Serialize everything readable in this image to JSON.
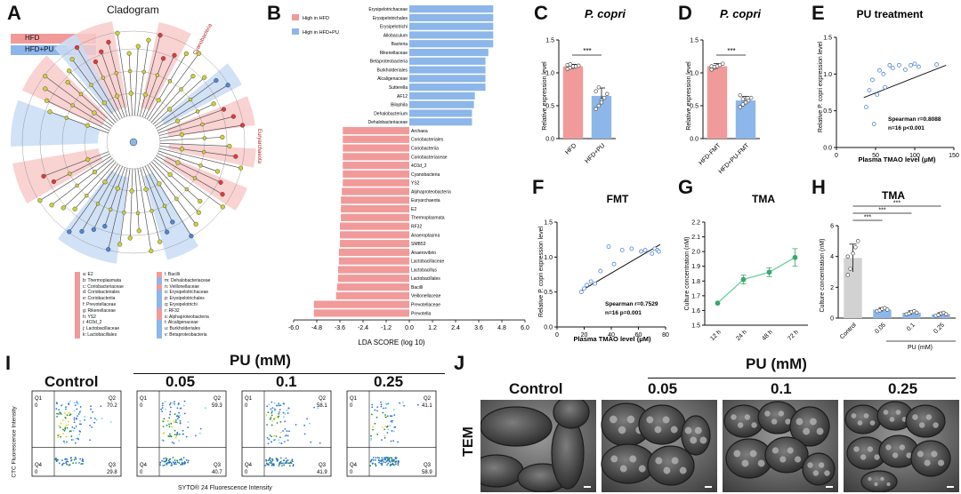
{
  "panel_letters": {
    "A": "A",
    "B": "B",
    "C": "C",
    "D": "D",
    "E": "E",
    "F": "F",
    "G": "G",
    "H": "H",
    "I": "I",
    "J": "J"
  },
  "colors": {
    "hfd": "#f19a9a",
    "hfd_pu": "#8db6ea",
    "green": "#3aa86a",
    "gray_bar": "#d2d2d2",
    "tree": "#555555",
    "node": "#cfcf3a"
  },
  "cladogram": {
    "title": "Cladogram",
    "legend": [
      "HFD",
      "HFD+PU"
    ],
    "clade_labels": {
      "cyanobacteria": "Cyanobacteria",
      "euryarchaeota": "Euryarchaeota"
    },
    "key_left": [
      "a: E2",
      "b: Thermoplasmata",
      "c: Coriobacteriaceae",
      "d: Coriobacteriales",
      "e: Coriobacteriia",
      "f: Prevotellaceae",
      "g: Rikenellaceae",
      "h: YS2",
      "i: 4C0d_2",
      "j: Lactobacillaceae",
      "k: Lactobacillales"
    ],
    "key_right": [
      "l: Bacilli",
      "m: Dehalobacteriaceae",
      "n: Veillonellaceae",
      "o: Erysipelotrichaceae",
      "p: Erysipelotrichales",
      "q: Erysipelotrichi",
      "r: RF32",
      "s: Alphaproteobacteria",
      "t: Alcaligenaceae",
      "u: Burkholderiales",
      "v: Betaproteobacteria"
    ]
  },
  "chart_data": [
    {
      "panel": "B",
      "type": "bar",
      "orientation": "horizontal",
      "xlabel": "LDA SCORE (log 10)",
      "xlim": [
        -6.0,
        6.0
      ],
      "xticks": [
        "-6.0",
        "-4.8",
        "-3.6",
        "-2.4",
        "-1.2",
        "0.0",
        "1.2",
        "2.4",
        "3.6",
        "4.8",
        "6.0"
      ],
      "legend": [
        "High in HFD",
        "High in HFD+PU"
      ],
      "series": [
        {
          "name": "High in HFD+PU",
          "categories": [
            "Erysipelotrichaceae",
            "Erysipelotrichales",
            "Erysipelotrichi",
            "Allobaculum",
            "Bacteria",
            "Rikenellaceae",
            "Betaproteobacteria",
            "Burkholderiales",
            "Alcaligenaceae",
            "Sutterella",
            "AF12",
            "Bilophila",
            "Dehalobacterium",
            "Dehalobacteriaceae"
          ],
          "values": [
            4.35,
            4.35,
            4.35,
            4.35,
            4.35,
            4.1,
            3.95,
            3.95,
            3.95,
            3.95,
            3.4,
            3.35,
            3.25,
            3.25
          ]
        },
        {
          "name": "High in HFD",
          "categories": [
            "Archaea",
            "Coriobacteriales",
            "Coriobacteriia",
            "Coriobacteriaceae",
            "4C0d_2",
            "Cyanobacteria",
            "YS2",
            "Alphaproteobacteria",
            "Euryarchaeota",
            "E2",
            "Thermoplasmata",
            "RF32",
            "Anaeroplasma",
            "SMB53",
            "Anaerovibrio",
            "Lactobacillaceae",
            "Lactobacillus",
            "Lactobacillales",
            "Bacilli",
            "Veillonellaceae",
            "Prevotellaceae",
            "Prevotella"
          ],
          "values": [
            -3.45,
            -3.45,
            -3.45,
            -3.45,
            -3.45,
            -3.45,
            -3.45,
            -3.5,
            -3.55,
            -3.55,
            -3.55,
            -3.6,
            -3.6,
            -3.6,
            -3.65,
            -3.65,
            -3.7,
            -3.7,
            -3.75,
            -3.8,
            -4.95,
            -4.95
          ]
        }
      ]
    },
    {
      "panel": "C",
      "type": "bar",
      "title": "P. copri",
      "ylabel": "Relative expression level",
      "ylim": [
        0.0,
        1.5
      ],
      "yticks": [
        "0.0",
        "0.5",
        "1.0",
        "1.5"
      ],
      "categories": [
        "HFD",
        "HFD+PU"
      ],
      "values": [
        1.1,
        0.65
      ],
      "errors": [
        0.03,
        0.12
      ],
      "points": [
        [
          1.06,
          1.08,
          1.09,
          1.1,
          1.11,
          1.12,
          1.13,
          1.1
        ],
        [
          0.45,
          0.5,
          0.58,
          0.62,
          0.68,
          0.72,
          0.78,
          0.55
        ]
      ],
      "significance": "***"
    },
    {
      "panel": "D",
      "type": "bar",
      "title": "P. copri",
      "ylabel": "Relative expression level",
      "ylim": [
        0.0,
        1.5
      ],
      "yticks": [
        "0.0",
        "0.5",
        "1.0",
        "1.5"
      ],
      "categories": [
        "HFD-FMT",
        "HFD+PU-FMT"
      ],
      "values": [
        1.1,
        0.58
      ],
      "errors": [
        0.04,
        0.06
      ],
      "points": [
        [
          1.05,
          1.08,
          1.1,
          1.12,
          1.14,
          1.1,
          1.09
        ],
        [
          0.48,
          0.52,
          0.55,
          0.58,
          0.62,
          0.66,
          0.6
        ]
      ],
      "significance": "***"
    },
    {
      "panel": "E",
      "type": "scatter",
      "title": "PU treatment",
      "xlabel": "Plasma TMAO level (μM)",
      "ylabel": "Relative P. copri expression level",
      "xlim": [
        0,
        150
      ],
      "ylim": [
        0.0,
        1.5
      ],
      "xticks": [
        "0",
        "50",
        "100",
        "150"
      ],
      "yticks": [
        "0.0",
        "0.5",
        "1.0",
        "1.5"
      ],
      "x": [
        38,
        42,
        46,
        48,
        52,
        55,
        60,
        62,
        68,
        72,
        80,
        88,
        95,
        100,
        105,
        128
      ],
      "y": [
        0.55,
        0.78,
        0.92,
        0.32,
        0.72,
        1.05,
        1.0,
        0.82,
        1.12,
        1.08,
        1.12,
        1.06,
        1.12,
        1.14,
        1.1,
        1.13
      ],
      "fit": [
        [
          35,
          0.68
        ],
        [
          140,
          1.12
        ]
      ],
      "annotation": [
        "Spearman r=0.8088",
        "n=16   p<0.001"
      ]
    },
    {
      "panel": "F",
      "type": "scatter",
      "title": "FMT",
      "xlabel": "Plasma TMAO level (μM)",
      "ylabel": "Relative P. copri expression level",
      "xlim": [
        0,
        80
      ],
      "ylim": [
        0.0,
        1.5
      ],
      "xticks": [
        "0",
        "20",
        "40",
        "60",
        "80"
      ],
      "yticks": [
        "0.0",
        "0.5",
        "1.0",
        "1.5"
      ],
      "x": [
        18,
        20,
        22,
        25,
        28,
        32,
        38,
        42,
        48,
        55,
        62,
        65,
        70,
        72,
        74,
        75
      ],
      "y": [
        0.5,
        0.55,
        0.6,
        0.65,
        0.62,
        0.8,
        1.15,
        0.9,
        1.1,
        1.12,
        1.08,
        1.1,
        1.05,
        1.12,
        1.1,
        1.08
      ],
      "fit": [
        [
          18,
          0.52
        ],
        [
          76,
          1.18
        ]
      ],
      "annotation": [
        "Spearman r=0.7529",
        "n=16    p=0.001"
      ]
    },
    {
      "panel": "G",
      "type": "line",
      "title": "TMA",
      "ylabel": "Culture concentration (nM)",
      "ylim": [
        1.5,
        2.2
      ],
      "yticks": [
        "1.5",
        "1.6",
        "1.7",
        "1.8",
        "1.9",
        "2.0",
        "2.1",
        "2.2"
      ],
      "categories": [
        "12 h",
        "24 h",
        "48 h",
        "72 h"
      ],
      "values": [
        1.65,
        1.81,
        1.86,
        1.96
      ],
      "errors": [
        0.0,
        0.03,
        0.03,
        0.06
      ]
    },
    {
      "panel": "H",
      "type": "bar",
      "title": "TMA",
      "ylabel": "Culture concentration (nM)",
      "xlabel": "PU (mM)",
      "ylim": [
        0,
        6
      ],
      "yticks": [
        "0",
        "2",
        "4",
        "6"
      ],
      "categories": [
        "Control",
        "0.05",
        "0.1",
        "0.25"
      ],
      "values": [
        3.9,
        0.55,
        0.35,
        0.25
      ],
      "errors": [
        0.9,
        0.12,
        0.12,
        0.1
      ],
      "points": [
        [
          2.8,
          3.2,
          4.2,
          4.6,
          5.0,
          4.0
        ],
        [
          0.45,
          0.5,
          0.6,
          0.65,
          0.55
        ],
        [
          0.25,
          0.3,
          0.4,
          0.45,
          0.35
        ],
        [
          0.15,
          0.2,
          0.3,
          0.35,
          0.25
        ]
      ],
      "significance": [
        "***",
        "***",
        "***"
      ]
    }
  ],
  "panel_I": {
    "header": "PU (mM)",
    "conditions": [
      "Control",
      "0.05",
      "0.1",
      "0.25"
    ],
    "q2": [
      "Q2\n70.2",
      "Q2\n59.3",
      "Q2\n58.1",
      "Q2\n41.1"
    ],
    "q3": [
      "Q3\n29.8",
      "Q3\n40.7",
      "Q3\n41.9",
      "Q3\n58.9"
    ],
    "q1": "Q1\n0",
    "q4": "Q4\n0",
    "ylabel": "CTC Fluorescence Intensity",
    "xlabel": "SYTO® 24 Fluorescence Intensity"
  },
  "panel_J": {
    "header": "PU (mM)",
    "conditions": [
      "Control",
      "0.05",
      "0.1",
      "0.25"
    ],
    "side_label": "TEM"
  }
}
